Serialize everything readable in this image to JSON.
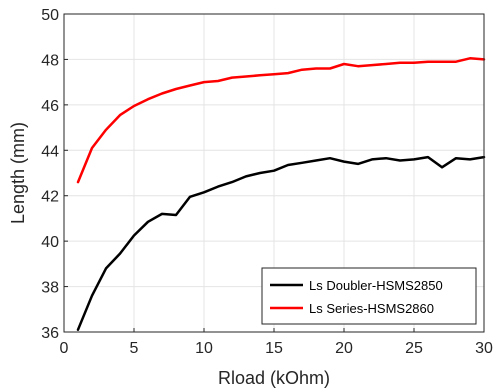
{
  "chart_data": {
    "type": "line",
    "xlabel": "Rload (kOhm)",
    "ylabel": "Length (mm)",
    "xlim": [
      0,
      30
    ],
    "ylim": [
      36,
      50
    ],
    "xticks": [
      0,
      5,
      10,
      15,
      20,
      25,
      30
    ],
    "yticks": [
      36,
      38,
      40,
      42,
      44,
      46,
      48,
      50
    ],
    "grid": true,
    "legend_position": "bottom-right",
    "x": [
      1,
      2,
      3,
      4,
      5,
      6,
      7,
      8,
      9,
      10,
      11,
      12,
      13,
      14,
      15,
      16,
      17,
      18,
      19,
      20,
      21,
      22,
      23,
      24,
      25,
      26,
      27,
      28,
      29,
      30
    ],
    "series": [
      {
        "name": "Ls Doubler-HSMS2850",
        "color": "#000000",
        "values": [
          36.1,
          37.6,
          38.8,
          39.45,
          40.25,
          40.85,
          41.2,
          41.15,
          41.95,
          42.15,
          42.4,
          42.6,
          42.85,
          43.0,
          43.1,
          43.35,
          43.45,
          43.55,
          43.65,
          43.5,
          43.4,
          43.6,
          43.65,
          43.55,
          43.6,
          43.7,
          43.25,
          43.65,
          43.6,
          43.7
        ]
      },
      {
        "name": "Ls Series-HSMS2860",
        "color": "#ff0000",
        "values": [
          42.6,
          44.1,
          44.9,
          45.55,
          45.95,
          46.25,
          46.5,
          46.7,
          46.85,
          47.0,
          47.05,
          47.2,
          47.25,
          47.3,
          47.35,
          47.4,
          47.55,
          47.6,
          47.6,
          47.8,
          47.7,
          47.75,
          47.8,
          47.85,
          47.85,
          47.9,
          47.9,
          47.9,
          48.05,
          48.0
        ]
      }
    ]
  }
}
